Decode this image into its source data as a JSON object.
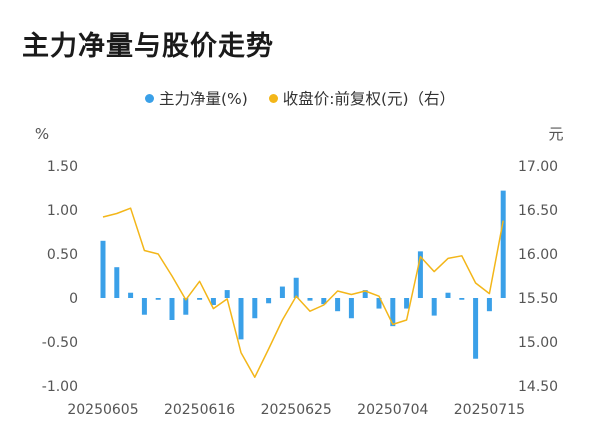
{
  "title": "主力净量与股价走势",
  "colors": {
    "bar": "#3aa0e8",
    "line": "#f3b619",
    "axis_text": "#555555"
  },
  "chart_data": {
    "type": "bar",
    "title": "主力净量与股价走势",
    "left_axis": {
      "unit": "%",
      "ticks": [
        "1.50",
        "1.00",
        "0.50",
        "0",
        "-0.50",
        "-1.00"
      ],
      "ylim": [
        -1.0,
        1.5
      ]
    },
    "right_axis": {
      "unit": "元",
      "ticks": [
        "17.00",
        "16.50",
        "16.00",
        "15.50",
        "15.00",
        "14.50"
      ],
      "ylim": [
        14.5,
        17.0
      ]
    },
    "x_tick_labels": [
      "20250605",
      "20250616",
      "20250625",
      "20250704",
      "20250715"
    ],
    "x_tick_indices": [
      0,
      7,
      14,
      21,
      28
    ],
    "grid": false,
    "legend_position": "top-center",
    "series": [
      {
        "name": "主力净量(%)",
        "type": "bar",
        "axis": "left",
        "values": [
          0.65,
          0.35,
          0.06,
          -0.19,
          -0.02,
          -0.25,
          -0.19,
          -0.02,
          -0.08,
          0.09,
          -0.47,
          -0.23,
          -0.06,
          0.13,
          0.23,
          -0.03,
          -0.07,
          -0.15,
          -0.23,
          0.09,
          -0.12,
          -0.32,
          -0.12,
          0.53,
          -0.2,
          0.06,
          -0.02,
          -0.69,
          -0.15,
          1.22
        ]
      },
      {
        "name": "收盘价:前复权(元)（右）",
        "type": "line",
        "axis": "right",
        "values": [
          16.42,
          16.46,
          16.52,
          16.04,
          16.0,
          15.75,
          15.48,
          15.69,
          15.38,
          15.49,
          14.88,
          14.6,
          14.92,
          15.25,
          15.52,
          15.35,
          15.42,
          15.58,
          15.54,
          15.58,
          15.52,
          15.2,
          15.25,
          15.97,
          15.8,
          15.95,
          15.98,
          15.67,
          15.55,
          16.38
        ]
      }
    ]
  }
}
